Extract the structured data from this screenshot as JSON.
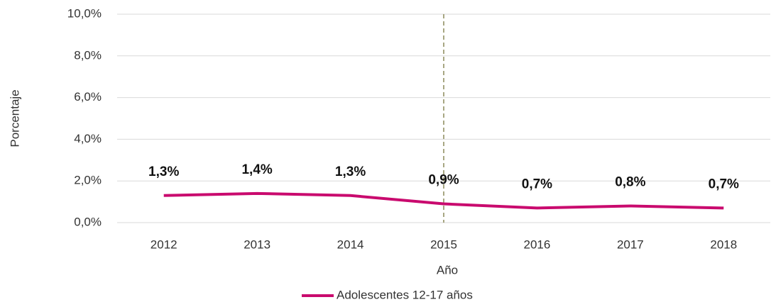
{
  "chart_data": {
    "type": "line",
    "categories": [
      "2012",
      "2013",
      "2014",
      "2015",
      "2016",
      "2017",
      "2018"
    ],
    "series": [
      {
        "name": "Adolescentes 12-17 años",
        "color": "#c90a6e",
        "values": [
          1.3,
          1.4,
          1.3,
          0.9,
          0.7,
          0.8,
          0.7
        ],
        "value_labels": [
          "1,3%",
          "1,4%",
          "1,3%",
          "0,9%",
          "0,7%",
          "0,8%",
          "0,7%"
        ]
      }
    ],
    "ylim": [
      0,
      10
    ],
    "yticks": [
      {
        "value": 0,
        "label": "0,0%"
      },
      {
        "value": 2,
        "label": "2,0%"
      },
      {
        "value": 4,
        "label": "4,0%"
      },
      {
        "value": 6,
        "label": "6,0%"
      },
      {
        "value": 8,
        "label": "8,0%"
      },
      {
        "value": 10,
        "label": "10,0%"
      }
    ],
    "xlabel": "Año",
    "ylabel": "Porcentaje",
    "grid": true,
    "legend": "bottom",
    "reference_line": {
      "category": "2015",
      "color": "#8c8a5a"
    }
  }
}
